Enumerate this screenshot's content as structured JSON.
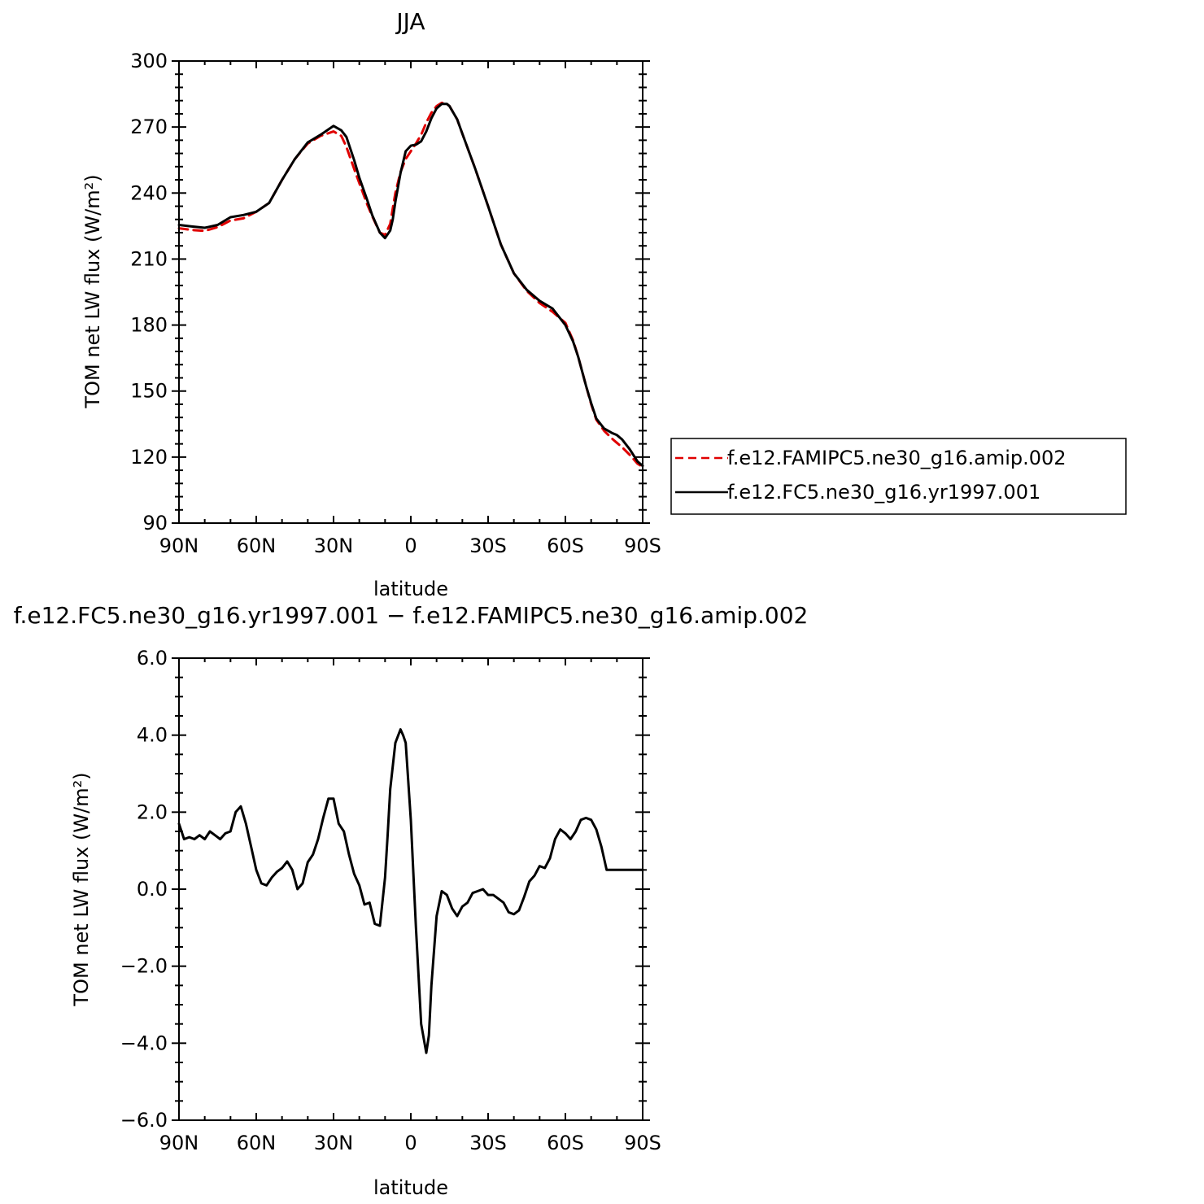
{
  "chart_data": [
    {
      "type": "line",
      "title": "JJA",
      "xlabel": "latitude",
      "ylabel": "TOM net LW flux (W/m²)",
      "xlim": [
        90,
        -90
      ],
      "ylim": [
        90,
        300
      ],
      "x_ticks": [
        90,
        60,
        30,
        0,
        -30,
        -60,
        -90
      ],
      "x_tick_labels": [
        "90N",
        "60N",
        "30N",
        "0",
        "30S",
        "60S",
        "90S"
      ],
      "y_ticks": [
        90,
        120,
        150,
        180,
        210,
        240,
        270,
        300
      ],
      "y_tick_labels": [
        "90",
        "120",
        "150",
        "180",
        "210",
        "240",
        "270",
        "300"
      ],
      "legend_position": "right",
      "grid": false,
      "series": [
        {
          "name": "f.e12.FAMIPC5.ne30_g16.amip.002",
          "color": "#e00000",
          "dash": "dashed",
          "x": [
            90,
            85,
            80,
            75,
            70,
            65,
            60,
            55,
            50,
            45,
            40,
            35,
            30,
            27,
            25,
            22,
            20,
            17,
            15,
            12,
            10,
            8,
            7,
            6,
            4,
            2,
            0,
            -2,
            -4,
            -6,
            -8,
            -10,
            -12,
            -14,
            -15,
            -16,
            -18,
            -20,
            -25,
            -30,
            -35,
            -40,
            -45,
            -50,
            -55,
            -60,
            -63,
            -65,
            -68,
            -70,
            -72,
            -75,
            -78,
            -80,
            -82,
            -85,
            -88,
            -90
          ],
          "y": [
            224,
            223.2,
            222.8,
            224.5,
            227.5,
            228.5,
            231.5,
            235.5,
            246,
            255.5,
            262.5,
            266,
            268,
            266,
            261,
            251,
            244.5,
            235,
            229.5,
            222,
            221,
            226,
            233,
            240,
            249.5,
            255.5,
            259,
            262.5,
            266.5,
            272,
            276.5,
            279.5,
            281,
            280.5,
            279.5,
            277.5,
            273.5,
            267,
            251,
            234,
            216.5,
            203.5,
            195.5,
            190,
            186,
            181,
            173,
            165.5,
            152.5,
            144,
            137,
            132,
            128.5,
            126.5,
            124.5,
            121,
            117,
            115.5
          ]
        },
        {
          "name": "f.e12.FC5.ne30_g16.yr1997.001",
          "color": "#000000",
          "dash": "solid",
          "x": [
            90,
            85,
            80,
            75,
            70,
            65,
            60,
            55,
            50,
            45,
            40,
            35,
            30,
            27,
            25,
            22,
            20,
            17,
            15,
            12,
            10,
            8,
            7,
            6,
            4,
            2,
            0,
            -2,
            -4,
            -6,
            -8,
            -10,
            -12,
            -14,
            -15,
            -16,
            -18,
            -20,
            -25,
            -30,
            -35,
            -40,
            -45,
            -50,
            -55,
            -60,
            -63,
            -65,
            -68,
            -70,
            -72,
            -75,
            -78,
            -80,
            -82,
            -85,
            -88,
            -90
          ],
          "y": [
            225.5,
            224.8,
            224.2,
            225.5,
            229,
            230,
            231.5,
            235.5,
            246,
            255.5,
            263,
            266.5,
            270.5,
            268.5,
            265.5,
            255,
            247,
            237,
            230,
            222,
            219.5,
            223,
            228,
            236,
            249,
            259,
            261.5,
            262,
            263.5,
            268,
            274,
            278.5,
            280.5,
            280.5,
            279.5,
            277.5,
            273.5,
            267,
            251,
            234,
            216.5,
            203.5,
            196,
            191,
            187.5,
            180,
            172.5,
            165.5,
            152.5,
            144.5,
            137.5,
            133,
            131,
            130,
            128,
            123.5,
            118,
            116
          ]
        }
      ]
    },
    {
      "type": "line",
      "title": "f.e12.FC5.ne30_g16.yr1997.001 − f.e12.FAMIPC5.ne30_g16.amip.002",
      "xlabel": "latitude",
      "ylabel": "TOM net LW flux (W/m²)",
      "xlim": [
        90,
        -90
      ],
      "ylim": [
        -6,
        6
      ],
      "x_ticks": [
        90,
        60,
        30,
        0,
        -30,
        -60,
        -90
      ],
      "x_tick_labels": [
        "90N",
        "60N",
        "30N",
        "0",
        "30S",
        "60S",
        "90S"
      ],
      "y_ticks": [
        -6,
        -4,
        -2,
        0,
        2,
        4,
        6
      ],
      "y_tick_labels": [
        "−6.0",
        "−4.0",
        "−2.0",
        "0.0",
        "2.0",
        "4.0",
        "6.0"
      ],
      "grid": false,
      "series": [
        {
          "color": "#000000",
          "dash": "solid",
          "x": [
            90,
            88,
            86,
            84,
            82,
            80,
            78,
            76,
            74,
            72,
            70,
            68,
            66,
            64,
            62,
            60,
            58,
            56,
            54,
            52,
            50,
            48,
            46,
            44,
            42,
            40,
            38,
            36,
            34,
            32,
            30,
            28,
            26,
            24,
            22,
            20,
            18,
            16,
            14,
            12,
            10,
            9,
            8,
            6,
            4,
            3,
            2,
            0,
            -2,
            -4,
            -6,
            -7,
            -8,
            -10,
            -12,
            -14,
            -16,
            -18,
            -20,
            -22,
            -24,
            -26,
            -28,
            -30,
            -32,
            -34,
            -36,
            -38,
            -40,
            -42,
            -44,
            -46,
            -48,
            -50,
            -52,
            -54,
            -56,
            -58,
            -60,
            -62,
            -64,
            -66,
            -68,
            -70,
            -72,
            -74,
            -76,
            -78,
            -80,
            -82,
            -84,
            -86,
            -88,
            -90
          ],
          "y": [
            1.7,
            1.3,
            1.35,
            1.3,
            1.4,
            1.3,
            1.5,
            1.4,
            1.3,
            1.45,
            1.5,
            2.0,
            2.15,
            1.7,
            1.1,
            0.5,
            0.15,
            0.1,
            0.3,
            0.45,
            0.55,
            0.72,
            0.5,
            0.0,
            0.15,
            0.7,
            0.9,
            1.3,
            1.85,
            2.35,
            2.35,
            1.7,
            1.5,
            0.9,
            0.4,
            0.1,
            -0.4,
            -0.35,
            -0.9,
            -0.95,
            0.3,
            1.4,
            2.6,
            3.8,
            4.15,
            4.0,
            3.8,
            1.8,
            -1.0,
            -3.5,
            -4.25,
            -3.8,
            -2.5,
            -0.7,
            -0.05,
            -0.15,
            -0.5,
            -0.7,
            -0.45,
            -0.35,
            -0.1,
            -0.05,
            0.0,
            -0.15,
            -0.15,
            -0.25,
            -0.35,
            -0.6,
            -0.65,
            -0.55,
            -0.2,
            0.2,
            0.35,
            0.6,
            0.55,
            0.8,
            1.3,
            1.55,
            1.45,
            1.3,
            1.5,
            1.8,
            1.85,
            1.8,
            1.55,
            1.1,
            0.5,
            0.5,
            0.5,
            0.5,
            0.5,
            0.5,
            0.5,
            0.5
          ]
        }
      ]
    }
  ]
}
